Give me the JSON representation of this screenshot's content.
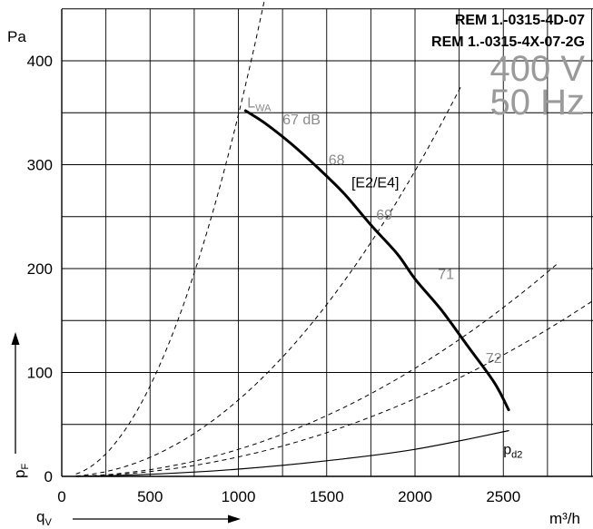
{
  "chart_data": {
    "type": "line",
    "models": [
      "REM 1.-0315-4D-07",
      "REM 1.-0315-4X-07-2G"
    ],
    "voltage": "400 V",
    "frequency": "50 Hz",
    "y_unit": "Pa",
    "x_unit": "m³/h",
    "ylabel": "p",
    "ylabel_sub": "F",
    "xlabel": "q",
    "xlabel_sub": "V",
    "xlim": [
      0,
      3000
    ],
    "ylim": [
      0,
      450
    ],
    "x_ticks": [
      0,
      500,
      1000,
      1500,
      2000,
      2500
    ],
    "y_ticks": [
      0,
      100,
      200,
      300,
      400
    ],
    "grid": true,
    "series": [
      {
        "name": "[E2/E4]",
        "style": "thick-solid",
        "x": [
          1040,
          1150,
          1300,
          1450,
          1600,
          1750,
          1900,
          2000,
          2150,
          2300,
          2450,
          2530
        ],
        "y": [
          352,
          340,
          320,
          297,
          272,
          242,
          214,
          190,
          160,
          125,
          90,
          64
        ]
      },
      {
        "name": "p",
        "name_sub": "d2",
        "style": "thin-solid",
        "x": [
          80,
          500,
          1000,
          1500,
          2000,
          2530
        ],
        "y": [
          0,
          2,
          7,
          15,
          26,
          44
        ]
      }
    ],
    "system_curves": [
      {
        "style": "dashed",
        "k": 0.000348,
        "x_end": 1230
      },
      {
        "style": "dashed",
        "k": 7.35e-05,
        "x_end": 2270
      },
      {
        "style": "dashed",
        "k": 2.6e-05,
        "x_end": 2800
      },
      {
        "style": "dashed",
        "k": 1.87e-05,
        "x_end": 3100
      }
    ],
    "sound_labels": [
      {
        "text": "L",
        "sub": "WA",
        "x": 1050,
        "y": 355
      },
      {
        "text": "67 dB",
        "x": 1250,
        "y": 339
      },
      {
        "text": "68",
        "x": 1510,
        "y": 300
      },
      {
        "text": "69",
        "x": 1780,
        "y": 247
      },
      {
        "text": "71",
        "x": 2130,
        "y": 190
      },
      {
        "text": "72",
        "x": 2400,
        "y": 109
      }
    ],
    "series_label": {
      "text": "[E2/E4]",
      "x": 1640,
      "y": 278
    },
    "colors": {
      "curve": "#000000",
      "grid": "#000000",
      "dashed": "#000000",
      "gray_text": "#8a8a8a",
      "big_text": "#9a9a9a"
    }
  }
}
